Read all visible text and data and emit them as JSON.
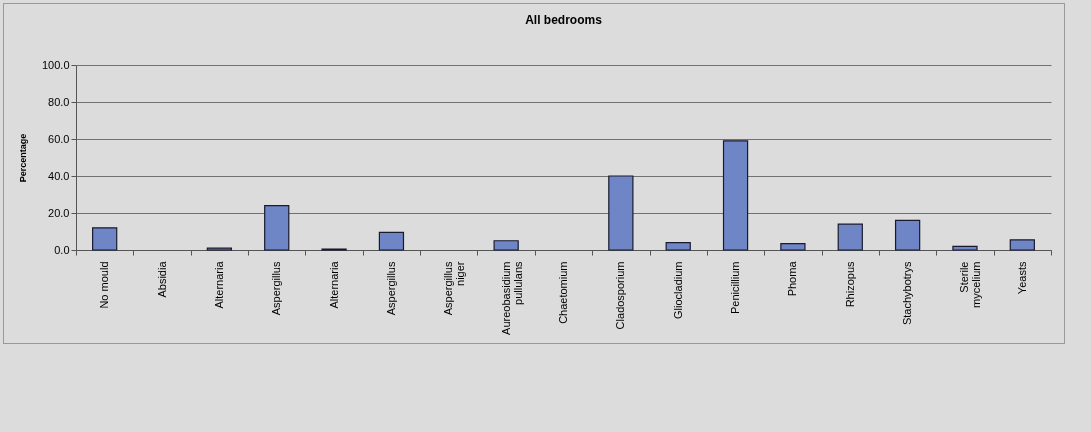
{
  "chart_data": {
    "type": "bar",
    "title": "All bedrooms",
    "ylabel": "Percentage",
    "categories": [
      "No mould",
      "Absidia",
      "Alternaria",
      "Aspergillus",
      "Alternaria",
      "Aspergillus",
      "Aspergillus\nniger",
      "Aureobasidium\npullulans",
      "Chaetomium",
      "Cladosporium",
      "Gliocladium",
      "Penicillium",
      "Phoma",
      "Rhizopus",
      "Stachybotrys",
      "Sterile\nmycelium",
      "Yeasts"
    ],
    "values": [
      12,
      0,
      1,
      24,
      0.5,
      9.5,
      0,
      5,
      0,
      40,
      4,
      59,
      3.5,
      14,
      16,
      2,
      5.5
    ],
    "color": "#6f86c6",
    "ylim": [
      0,
      100
    ],
    "yticks": [
      {
        "value": 0,
        "label": "0.0"
      },
      {
        "value": 20,
        "label": "20.0"
      },
      {
        "value": 40,
        "label": "40.0"
      },
      {
        "value": 60,
        "label": "60.0"
      },
      {
        "value": 80,
        "label": "80.0"
      },
      {
        "value": 100,
        "label": "100.0"
      }
    ],
    "grid": "y",
    "legend": false
  }
}
